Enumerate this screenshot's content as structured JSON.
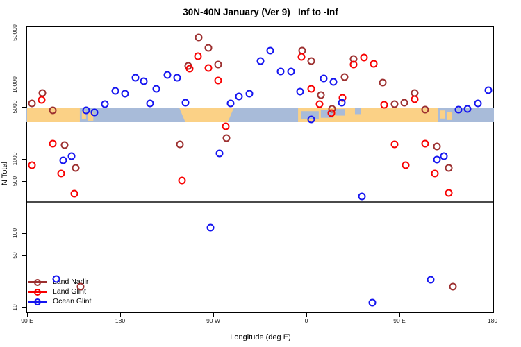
{
  "chart_data": {
    "type": "scatter",
    "title": "30N-40N January (Ver 9)   Inf to -Inf",
    "xlabel": "Longitude (deg E)",
    "ylabel": "N Total",
    "y_scale": "log10",
    "ylim": [
      8,
      60000
    ],
    "x_axis_deg_range": [
      90,
      540
    ],
    "x_ticks": [
      {
        "deg": 90,
        "label": "90 E"
      },
      {
        "deg": 180,
        "label": "180"
      },
      {
        "deg": 270,
        "label": "90 W"
      },
      {
        "deg": 360,
        "label": "0"
      },
      {
        "deg": 450,
        "label": "90 E"
      },
      {
        "deg": 540,
        "label": "180"
      }
    ],
    "y_ticks": [
      {
        "value": 10,
        "label": "10"
      },
      {
        "value": 50,
        "label": "50"
      },
      {
        "value": 100,
        "label": "100"
      },
      {
        "value": 500,
        "label": "500"
      },
      {
        "value": 1000,
        "label": "1000"
      },
      {
        "value": 5000,
        "label": "5000"
      },
      {
        "value": 10000,
        "label": "10000"
      },
      {
        "value": 50000,
        "label": "50000"
      }
    ],
    "panel_divider_n": 260,
    "legend_position": "bottom-left",
    "series": [
      {
        "name": "Land Nadir",
        "color": "#9c2f2f",
        "points": [
          [
            105,
            7700
          ],
          [
            95,
            5600
          ],
          [
            115,
            4500
          ],
          [
            126,
            1540
          ],
          [
            137,
            760
          ],
          [
            256,
            43000
          ],
          [
            265,
            31000
          ],
          [
            246,
            17900
          ],
          [
            275,
            18700
          ],
          [
            283,
            1900
          ],
          [
            238,
            1570
          ],
          [
            356,
            28700
          ],
          [
            365,
            20800
          ],
          [
            374,
            7240
          ],
          [
            385,
            4700
          ],
          [
            397,
            12700
          ],
          [
            406,
            22200
          ],
          [
            434,
            10700
          ],
          [
            445,
            5470
          ],
          [
            455,
            5710
          ],
          [
            465,
            7700
          ],
          [
            475,
            4600
          ],
          [
            486,
            1470
          ],
          [
            498,
            760
          ],
          [
            502,
            19
          ],
          [
            142,
            19
          ]
        ]
      },
      {
        "name": "Land Glint",
        "color": "#f80000",
        "points": [
          [
            104,
            6200
          ],
          [
            95,
            820
          ],
          [
            115,
            1600
          ],
          [
            123,
            640
          ],
          [
            136,
            340
          ],
          [
            255,
            24200
          ],
          [
            247,
            16400
          ],
          [
            265,
            16700
          ],
          [
            275,
            11400
          ],
          [
            282,
            2750
          ],
          [
            240,
            510
          ],
          [
            355,
            23600
          ],
          [
            365,
            8800
          ],
          [
            373,
            5470
          ],
          [
            395,
            6640
          ],
          [
            384,
            4100
          ],
          [
            406,
            18700
          ],
          [
            416,
            23100
          ],
          [
            425,
            19000
          ],
          [
            435,
            5340
          ],
          [
            445,
            1570
          ],
          [
            456,
            820
          ],
          [
            465,
            6370
          ],
          [
            475,
            1600
          ],
          [
            484,
            640
          ],
          [
            498,
            350
          ]
        ]
      },
      {
        "name": "Ocean Glint",
        "color": "#1414f0",
        "points": [
          [
            147,
            4500
          ],
          [
            155,
            4230
          ],
          [
            165,
            5470
          ],
          [
            175,
            8240
          ],
          [
            185,
            7570
          ],
          [
            195,
            12400
          ],
          [
            203,
            11100
          ],
          [
            133,
            1090
          ],
          [
            125,
            960
          ],
          [
            226,
            13500
          ],
          [
            235,
            12400
          ],
          [
            215,
            8800
          ],
          [
            243,
            5710
          ],
          [
            209,
            5600
          ],
          [
            287,
            5600
          ],
          [
            295,
            6930
          ],
          [
            305,
            7570
          ],
          [
            316,
            20800
          ],
          [
            325,
            28700
          ],
          [
            335,
            15100
          ],
          [
            345,
            15100
          ],
          [
            377,
            12100
          ],
          [
            386,
            10900
          ],
          [
            354,
            8070
          ],
          [
            394,
            5710
          ],
          [
            365,
            3410
          ],
          [
            276,
            1190
          ],
          [
            414,
            313
          ],
          [
            493,
            1090
          ],
          [
            486,
            970
          ],
          [
            526,
            5600
          ],
          [
            536,
            8400
          ],
          [
            507,
            4600
          ],
          [
            516,
            4700
          ],
          [
            267,
            119
          ],
          [
            424,
            11.6
          ],
          [
            480,
            23.7
          ],
          [
            118,
            24
          ]
        ]
      }
    ],
    "map_band": {
      "description": "30N-40N world map strip drawn across plot at N~3100-4900",
      "ocean_color": "#a8bbd9",
      "land_color": "#fbd186",
      "land_segments_deg": [
        {
          "d0": 90,
          "d1": 141,
          "t": 0,
          "b": 1
        },
        {
          "d0": 143,
          "d1": 147,
          "t": 0.25,
          "b": 0.8
        },
        {
          "d0": 149,
          "d1": 154,
          "t": 0.35,
          "b": 0.9
        },
        {
          "d0": 352,
          "d1": 487,
          "t": 0,
          "b": 1
        },
        {
          "d0": 489,
          "d1": 494,
          "t": 0.2,
          "b": 0.75
        },
        {
          "d0": 496,
          "d1": 501,
          "t": 0.3,
          "b": 0.85
        }
      ],
      "north_america_polygon_deg": {
        "top0": 237,
        "top1": 290,
        "bot0": 243,
        "bot1": 284
      },
      "water_overlays_deg": [
        {
          "d0": 355,
          "d1": 372,
          "t": 0.25,
          "b": 0.8,
          "name": "mediterranean-west"
        },
        {
          "d0": 374,
          "d1": 386,
          "t": 0.15,
          "b": 0.7,
          "name": "mediterranean-east"
        },
        {
          "d0": 388,
          "d1": 397,
          "t": 0.1,
          "b": 0.55,
          "name": "levant-sea"
        },
        {
          "d0": 407,
          "d1": 413,
          "t": 0,
          "b": 0.45,
          "name": "caspian-sea"
        }
      ]
    }
  }
}
